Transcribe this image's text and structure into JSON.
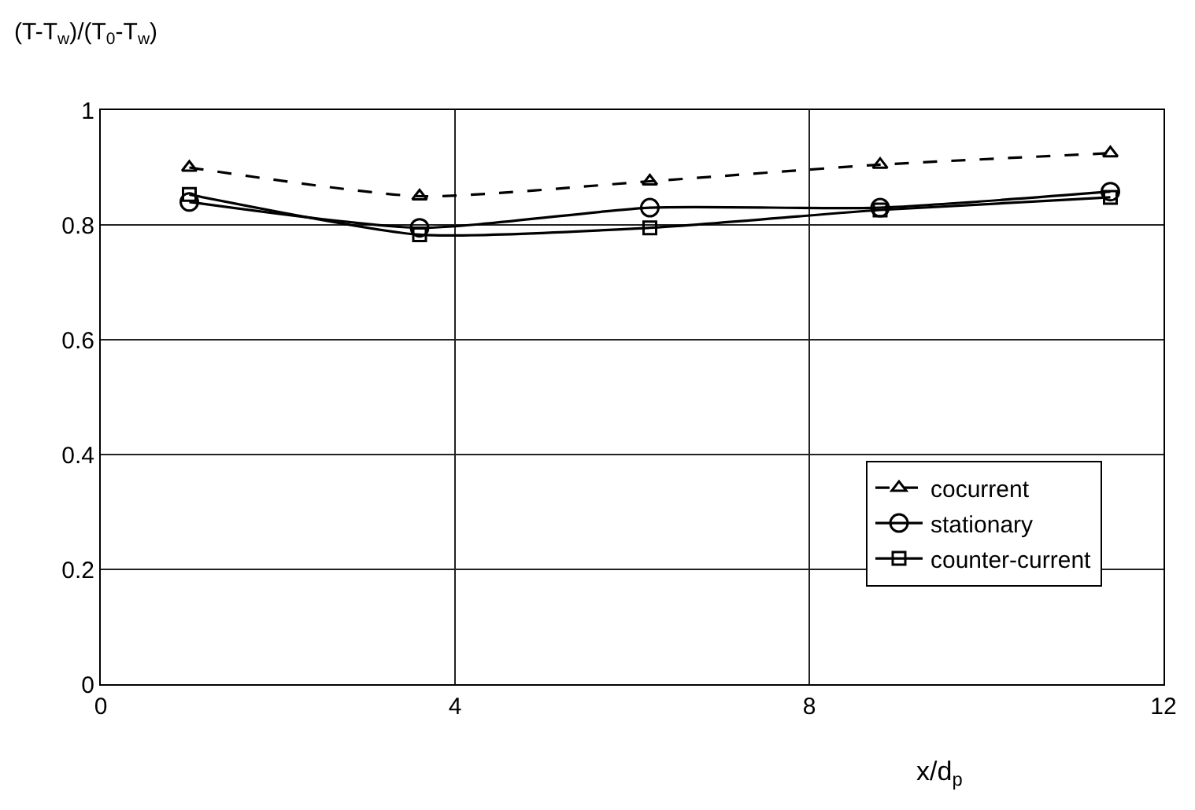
{
  "chart_data": {
    "type": "line",
    "xlabel": "x/d$_{p}$",
    "ylabel": "(T-T$_{w}$)/(T$_{0}$-T$_{w}$)",
    "x": [
      1.0,
      3.6,
      6.2,
      8.8,
      11.4
    ],
    "series": [
      {
        "name": "cocurrent",
        "color": "#000000",
        "marker": "triangle",
        "line_style": "dashed",
        "values": [
          0.9,
          0.85,
          0.876,
          0.905,
          0.925
        ]
      },
      {
        "name": "stationary",
        "color": "#000000",
        "marker": "circle",
        "line_style": "solid",
        "values": [
          0.84,
          0.795,
          0.83,
          0.83,
          0.858
        ]
      },
      {
        "name": "counter-current",
        "color": "#000000",
        "marker": "square",
        "line_style": "solid",
        "values": [
          0.853,
          0.783,
          0.795,
          0.826,
          0.848
        ]
      }
    ],
    "xlim": [
      0,
      12
    ],
    "xticks": [
      0,
      4,
      8,
      12
    ],
    "ylim": [
      0,
      1
    ],
    "yticks": [
      0,
      0.2,
      0.4,
      0.6,
      0.8,
      1
    ],
    "grid": true,
    "legend": "right"
  }
}
